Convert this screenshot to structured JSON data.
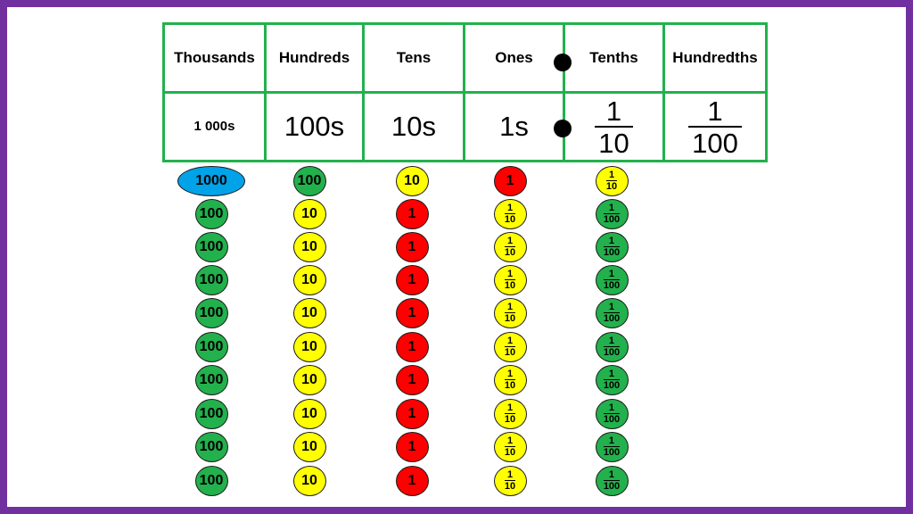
{
  "headers": [
    "Thousands",
    "Hundreds",
    "Tens",
    "Ones",
    "Tenths",
    "Hundredths"
  ],
  "values": [
    {
      "text": "1 000s"
    },
    {
      "text": "100s"
    },
    {
      "text": "10s"
    },
    {
      "text": "1s"
    },
    {
      "num": "1",
      "den": "10"
    },
    {
      "num": "1",
      "den": "100"
    }
  ],
  "colors": {
    "border": "#7030a0",
    "table_line": "#22b14c",
    "blue": "#00a2e8",
    "green": "#22b14c",
    "yellow": "#ffff00",
    "red": "#ff0000"
  },
  "counters": [
    {
      "column": "Thousands",
      "items": [
        {
          "label": "1000",
          "color": "blue"
        },
        {
          "label": "100",
          "color": "green"
        },
        {
          "label": "100",
          "color": "green"
        },
        {
          "label": "100",
          "color": "green"
        },
        {
          "label": "100",
          "color": "green"
        },
        {
          "label": "100",
          "color": "green"
        },
        {
          "label": "100",
          "color": "green"
        },
        {
          "label": "100",
          "color": "green"
        },
        {
          "label": "100",
          "color": "green"
        },
        {
          "label": "100",
          "color": "green"
        }
      ]
    },
    {
      "column": "Hundreds",
      "items": [
        {
          "label": "100",
          "color": "green"
        },
        {
          "label": "10",
          "color": "yellow"
        },
        {
          "label": "10",
          "color": "yellow"
        },
        {
          "label": "10",
          "color": "yellow"
        },
        {
          "label": "10",
          "color": "yellow"
        },
        {
          "label": "10",
          "color": "yellow"
        },
        {
          "label": "10",
          "color": "yellow"
        },
        {
          "label": "10",
          "color": "yellow"
        },
        {
          "label": "10",
          "color": "yellow"
        },
        {
          "label": "10",
          "color": "yellow"
        }
      ]
    },
    {
      "column": "Tens",
      "items": [
        {
          "label": "10",
          "color": "yellow"
        },
        {
          "label": "1",
          "color": "red"
        },
        {
          "label": "1",
          "color": "red"
        },
        {
          "label": "1",
          "color": "red"
        },
        {
          "label": "1",
          "color": "red"
        },
        {
          "label": "1",
          "color": "red"
        },
        {
          "label": "1",
          "color": "red"
        },
        {
          "label": "1",
          "color": "red"
        },
        {
          "label": "1",
          "color": "red"
        },
        {
          "label": "1",
          "color": "red"
        }
      ]
    },
    {
      "column": "Ones",
      "items": [
        {
          "label": "1",
          "color": "red"
        },
        {
          "num": "1",
          "den": "10",
          "color": "yellow"
        },
        {
          "num": "1",
          "den": "10",
          "color": "yellow"
        },
        {
          "num": "1",
          "den": "10",
          "color": "yellow"
        },
        {
          "num": "1",
          "den": "10",
          "color": "yellow"
        },
        {
          "num": "1",
          "den": "10",
          "color": "yellow"
        },
        {
          "num": "1",
          "den": "10",
          "color": "yellow"
        },
        {
          "num": "1",
          "den": "10",
          "color": "yellow"
        },
        {
          "num": "1",
          "den": "10",
          "color": "yellow"
        },
        {
          "num": "1",
          "den": "10",
          "color": "yellow"
        }
      ]
    },
    {
      "column": "Tenths",
      "items": [
        {
          "num": "1",
          "den": "10",
          "color": "yellow"
        },
        {
          "num": "1",
          "den": "100",
          "color": "green"
        },
        {
          "num": "1",
          "den": "100",
          "color": "green"
        },
        {
          "num": "1",
          "den": "100",
          "color": "green"
        },
        {
          "num": "1",
          "den": "100",
          "color": "green"
        },
        {
          "num": "1",
          "den": "100",
          "color": "green"
        },
        {
          "num": "1",
          "den": "100",
          "color": "green"
        },
        {
          "num": "1",
          "den": "100",
          "color": "green"
        },
        {
          "num": "1",
          "den": "100",
          "color": "green"
        },
        {
          "num": "1",
          "den": "100",
          "color": "green"
        }
      ]
    }
  ]
}
